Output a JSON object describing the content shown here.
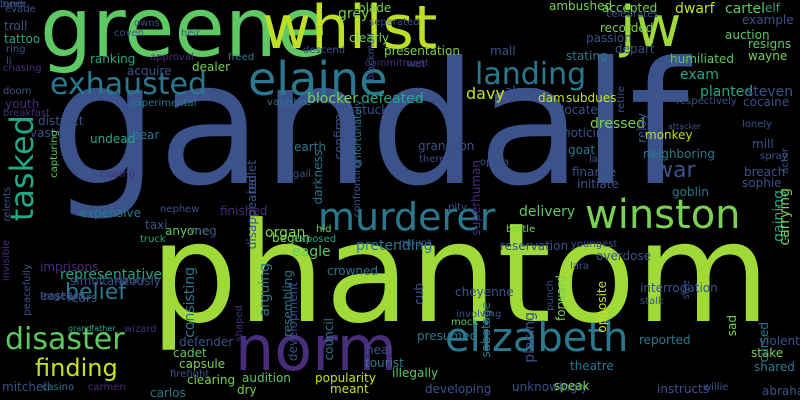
{
  "background": "#000000",
  "palette": {
    "green": "#7ad151",
    "lime": "#a0da39",
    "bright_green": "#5ec962",
    "teal": "#2a788e",
    "blue": "#3b528b",
    "purple": "#472d7b",
    "dark_purple": "#440154",
    "cyan_green": "#22a884",
    "yellow_green": "#c8e020"
  },
  "words": [
    {
      "text": "gandalf",
      "color": "#3b528b"
    },
    {
      "text": "phantom",
      "color": "#a0da39"
    },
    {
      "text": "greene",
      "color": "#5ec962"
    },
    {
      "text": "whilst",
      "color": "#bddf26"
    },
    {
      "text": "jw",
      "color": "#a0da39"
    },
    {
      "text": "elaine",
      "color": "#2a788e"
    },
    {
      "text": "norm",
      "color": "#472d7b"
    },
    {
      "text": "elizabeth",
      "color": "#2a788e"
    },
    {
      "text": "winston",
      "color": "#7ad151"
    },
    {
      "text": "murderer",
      "color": "#2a788e"
    },
    {
      "text": "exhausted",
      "color": "#2a788e"
    },
    {
      "text": "landing",
      "color": "#2a788e"
    },
    {
      "text": "disaster",
      "color": "#5ec962"
    },
    {
      "text": "tasked",
      "color": "#22a884"
    },
    {
      "text": "finding",
      "color": "#c8e020"
    },
    {
      "text": "belief",
      "color": "#2a788e"
    },
    {
      "text": "war",
      "color": "#3b528b"
    },
    {
      "text": "representative",
      "color": "#22a884"
    },
    {
      "text": "davy",
      "color": "#c8e020"
    },
    {
      "text": "exam",
      "color": "#22a884"
    },
    {
      "text": "planted",
      "color": "#22a884"
    },
    {
      "text": "steven",
      "color": "#3b528b"
    },
    {
      "text": "cocaine",
      "color": "#3b528b"
    },
    {
      "text": "mill",
      "color": "#3b528b"
    },
    {
      "text": "lonely",
      "color": "#3b528b"
    },
    {
      "text": "dressed",
      "color": "#7ad151"
    },
    {
      "text": "noticing",
      "color": "#3b528b"
    },
    {
      "text": "neighboring",
      "color": "#2a788e"
    },
    {
      "text": "goat",
      "color": "#2a788e"
    },
    {
      "text": "monkey",
      "color": "#bddf26"
    },
    {
      "text": "finance",
      "color": "#3b528b"
    },
    {
      "text": "initiate",
      "color": "#3b528b"
    },
    {
      "text": "goblin",
      "color": "#2a788e"
    },
    {
      "text": "sophie",
      "color": "#3b528b"
    },
    {
      "text": "breach",
      "color": "#3b528b"
    },
    {
      "text": "gaining",
      "color": "#22a884"
    },
    {
      "text": "carrying",
      "color": "#7ad151"
    },
    {
      "text": "spray",
      "color": "#3b528b"
    },
    {
      "text": "actor",
      "color": "#3b528b"
    },
    {
      "text": "delivery",
      "color": "#5ec962"
    },
    {
      "text": "locates",
      "color": "#3b528b"
    },
    {
      "text": "subdues",
      "color": "#c8e020"
    },
    {
      "text": "dam",
      "color": "#c8e020"
    },
    {
      "text": "alarm",
      "color": "#3b528b"
    },
    {
      "text": "stuck",
      "color": "#3b528b"
    },
    {
      "text": "blocker",
      "color": "#7ad151"
    },
    {
      "text": "defeated",
      "color": "#22a884"
    },
    {
      "text": "presentation",
      "color": "#7ad151"
    },
    {
      "text": "mall",
      "color": "#3b528b"
    },
    {
      "text": "stating",
      "color": "#2a788e"
    },
    {
      "text": "passion",
      "color": "#3b528b"
    },
    {
      "text": "recorded",
      "color": "#7ad151"
    },
    {
      "text": "depart",
      "color": "#3b528b"
    },
    {
      "text": "accepted",
      "color": "#7ad151"
    },
    {
      "text": "dwarf",
      "color": "#c8e020"
    },
    {
      "text": "cartel",
      "color": "#5ec962"
    },
    {
      "text": "elf",
      "color": "#22a884"
    },
    {
      "text": "example",
      "color": "#3b528b"
    },
    {
      "text": "auction",
      "color": "#5ec962"
    },
    {
      "text": "resigns",
      "color": "#5ec962"
    },
    {
      "text": "wayne",
      "color": "#7ad151"
    },
    {
      "text": "humiliated",
      "color": "#5ec962"
    },
    {
      "text": "ambushed",
      "color": "#7ad151"
    },
    {
      "text": "blade",
      "color": "#7ad151"
    },
    {
      "text": "clearly",
      "color": "#7ad151"
    },
    {
      "text": "grey",
      "color": "#7ad151"
    },
    {
      "text": "ranking",
      "color": "#22a884"
    },
    {
      "text": "acquire",
      "color": "#3b528b"
    },
    {
      "text": "dealer",
      "color": "#7ad151"
    },
    {
      "text": "approval",
      "color": "#472d7b"
    },
    {
      "text": "coven",
      "color": "#3b528b"
    },
    {
      "text": "heir",
      "color": "#3b528b"
    },
    {
      "text": "freed",
      "color": "#2a788e"
    },
    {
      "text": "troll",
      "color": "#3b528b"
    },
    {
      "text": "tattoo",
      "color": "#22a884"
    },
    {
      "text": "ring",
      "color": "#3b528b"
    },
    {
      "text": "li",
      "color": "#3b528b"
    },
    {
      "text": "chasing",
      "color": "#472d7b"
    },
    {
      "text": "doom",
      "color": "#3b528b"
    },
    {
      "text": "breakfast",
      "color": "#472d7b"
    },
    {
      "text": "youth",
      "color": "#472d7b"
    },
    {
      "text": "distract",
      "color": "#3b528b"
    },
    {
      "text": "vast",
      "color": "#3b528b"
    },
    {
      "text": "undead",
      "color": "#22a884"
    },
    {
      "text": "bear",
      "color": "#2a788e"
    },
    {
      "text": "capturing",
      "color": "#5ec962"
    },
    {
      "text": "closing",
      "color": "#472d7b"
    },
    {
      "text": "expensive",
      "color": "#2a788e"
    },
    {
      "text": "nephew",
      "color": "#3b528b"
    },
    {
      "text": "finished",
      "color": "#472d7b"
    },
    {
      "text": "taxi",
      "color": "#3b528b"
    },
    {
      "text": "anyone",
      "color": "#5ec962"
    },
    {
      "text": "meg",
      "color": "#3b528b"
    },
    {
      "text": "truck",
      "color": "#22a884"
    },
    {
      "text": "imprisons",
      "color": "#472d7b"
    },
    {
      "text": "simultaneously",
      "color": "#3b528b"
    },
    {
      "text": "luxury",
      "color": "#3b528b"
    },
    {
      "text": "eastern",
      "color": "#3b528b"
    },
    {
      "text": "grandfather",
      "color": "#22a884"
    },
    {
      "text": "wizard",
      "color": "#472d7b"
    },
    {
      "text": "invisible",
      "color": "#472d7b"
    },
    {
      "text": "relents",
      "color": "#3b528b"
    },
    {
      "text": "defender",
      "color": "#3b528b"
    },
    {
      "text": "cadet",
      "color": "#5ec962"
    },
    {
      "text": "capsule",
      "color": "#7ad151"
    },
    {
      "text": "clearing",
      "color": "#7ad151"
    },
    {
      "text": "carlos",
      "color": "#2a788e"
    },
    {
      "text": "mitchell",
      "color": "#3b528b"
    },
    {
      "text": "casino",
      "color": "#2a788e"
    },
    {
      "text": "carmen",
      "color": "#472d7b"
    },
    {
      "text": "firefight",
      "color": "#3b528b"
    },
    {
      "text": "dry",
      "color": "#7ad151"
    },
    {
      "text": "audition",
      "color": "#5ec962"
    },
    {
      "text": "popularity",
      "color": "#c8e020"
    },
    {
      "text": "meant",
      "color": "#c8e020"
    },
    {
      "text": "illegally",
      "color": "#5ec962"
    },
    {
      "text": "developing",
      "color": "#3b528b"
    },
    {
      "text": "unknowingly",
      "color": "#3b528b"
    },
    {
      "text": "speak",
      "color": "#7ad151"
    },
    {
      "text": "instructs",
      "color": "#3b528b"
    },
    {
      "text": "willie",
      "color": "#3b528b"
    },
    {
      "text": "abraham",
      "color": "#3b528b"
    },
    {
      "text": "shared",
      "color": "#2a788e"
    },
    {
      "text": "stake",
      "color": "#7ad151"
    },
    {
      "text": "violently",
      "color": "#3b528b"
    },
    {
      "text": "cursed",
      "color": "#2a788e"
    },
    {
      "text": "sad",
      "color": "#7ad151"
    },
    {
      "text": "reported",
      "color": "#2a788e"
    },
    {
      "text": "theatre",
      "color": "#2a788e"
    },
    {
      "text": "heal",
      "color": "#3b528b"
    },
    {
      "text": "tourist",
      "color": "#2a788e"
    },
    {
      "text": "presumed",
      "color": "#2a788e"
    },
    {
      "text": "cheyenne",
      "color": "#3b528b"
    },
    {
      "text": "involving",
      "color": "#3b528b"
    },
    {
      "text": "mock",
      "color": "#5ec962"
    },
    {
      "text": "cub",
      "color": "#3b528b"
    },
    {
      "text": "placing",
      "color": "#3b528b"
    },
    {
      "text": "sabotage",
      "color": "#2a788e"
    },
    {
      "text": "crowned",
      "color": "#2a788e"
    },
    {
      "text": "pretending",
      "color": "#2a788e"
    },
    {
      "text": "council",
      "color": "#2a788e"
    },
    {
      "text": "eagle",
      "color": "#5ec962"
    },
    {
      "text": "earth",
      "color": "#2a788e"
    },
    {
      "text": "organ",
      "color": "#7ad151"
    },
    {
      "text": "begun",
      "color": "#7ad151"
    },
    {
      "text": "exposed",
      "color": "#22a884"
    },
    {
      "text": "hid",
      "color": "#7ad151"
    },
    {
      "text": "mount",
      "color": "#3b528b"
    },
    {
      "text": "youngest",
      "color": "#3b528b"
    },
    {
      "text": "overdose",
      "color": "#3b528b"
    },
    {
      "text": "reservation",
      "color": "#3b528b"
    },
    {
      "text": "bottle",
      "color": "#7ad151"
    },
    {
      "text": "lara",
      "color": "#3b528b"
    },
    {
      "text": "grandson",
      "color": "#3b528b"
    },
    {
      "text": "thereby",
      "color": "#3b528b"
    },
    {
      "text": "opera",
      "color": "#3b528b"
    },
    {
      "text": "pity",
      "color": "#3b528b"
    },
    {
      "text": "superhuman",
      "color": "#472d7b"
    },
    {
      "text": "confirm",
      "color": "#3b528b"
    },
    {
      "text": "vanishes",
      "color": "#2a788e"
    },
    {
      "text": "experimental",
      "color": "#2a788e"
    },
    {
      "text": "wet",
      "color": "#3b528b"
    },
    {
      "text": "commitment",
      "color": "#472d7b"
    },
    {
      "text": "descend",
      "color": "#3b528b"
    },
    {
      "text": "separated",
      "color": "#3b528b"
    },
    {
      "text": "celebrates",
      "color": "#3b528b"
    },
    {
      "text": "retire",
      "color": "#3b528b"
    },
    {
      "text": "relay",
      "color": "#3b528b"
    },
    {
      "text": "respectively",
      "color": "#3b528b"
    },
    {
      "text": "attacker",
      "color": "#3b528b"
    },
    {
      "text": "laid",
      "color": "#3b528b"
    },
    {
      "text": "interrogation",
      "color": "#3b528b"
    },
    {
      "text": "stalk",
      "color": "#3b528b"
    },
    {
      "text": "opposite",
      "color": "#c8e020"
    },
    {
      "text": "forward",
      "color": "#7ad151"
    },
    {
      "text": "size",
      "color": "#3b528b"
    },
    {
      "text": "owns",
      "color": "#3b528b"
    },
    {
      "text": "disappeared",
      "color": "#3b528b"
    },
    {
      "text": "ballet",
      "color": "#3b528b"
    },
    {
      "text": "resembling",
      "color": "#2a788e"
    },
    {
      "text": "development",
      "color": "#3b528b"
    },
    {
      "text": "consisting",
      "color": "#2a788e"
    },
    {
      "text": "arguing",
      "color": "#2a788e"
    },
    {
      "text": "darkness",
      "color": "#2a788e"
    },
    {
      "text": "unfortunately",
      "color": "#2a788e"
    },
    {
      "text": "gail",
      "color": "#3b528b"
    },
    {
      "text": "confronting",
      "color": "#3b528b"
    },
    {
      "text": "evade",
      "color": "#3b528b"
    },
    {
      "text": "punch",
      "color": "#3b528b"
    },
    {
      "text": "shaped",
      "color": "#472d7b"
    },
    {
      "text": "peacefully",
      "color": "#3b528b"
    },
    {
      "text": "forge",
      "color": "#3b528b"
    },
    {
      "text": "blackmail",
      "color": "#3b528b"
    },
    {
      "text": "fears",
      "color": "#3b528b"
    },
    {
      "text": "tomb",
      "color": "#3b528b"
    },
    {
      "text": "inner",
      "color": "#3b528b"
    }
  ]
}
